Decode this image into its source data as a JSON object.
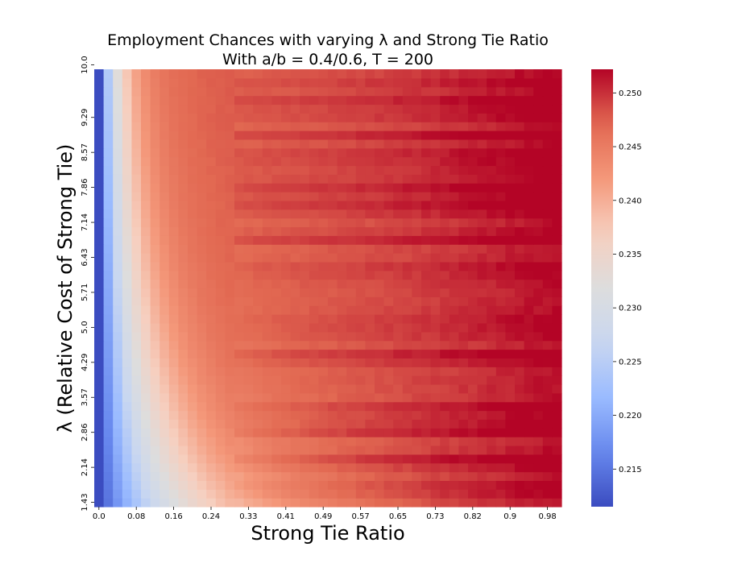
{
  "chart_data": {
    "type": "heatmap",
    "title_line1": "Employment Chances with varying λ and Strong Tie Ratio",
    "title_line2": "With a/b = 0.4/0.6, T = 200",
    "xlabel": "Strong Tie Ratio",
    "ylabel": "λ (Relative Cost of Strong Tie)",
    "x_tick_labels": [
      "0.0",
      "0.08",
      "0.16",
      "0.24",
      "0.33",
      "0.41",
      "0.49",
      "0.57",
      "0.65",
      "0.73",
      "0.82",
      "0.9",
      "0.98"
    ],
    "y_tick_labels_bottom_to_top": [
      "1.43",
      "2.14",
      "2.86",
      "3.57",
      "4.29",
      "5.0",
      "5.71",
      "6.43",
      "7.14",
      "7.86",
      "8.57",
      "9.29",
      "10.0"
    ],
    "x_range": [
      0.0,
      1.0
    ],
    "y_range": [
      1.43,
      10.0
    ],
    "n_columns": 50,
    "n_rows": 50,
    "value_range": [
      0.2115,
      0.2522
    ],
    "colormap": "coolwarm",
    "colormap_stops": [
      "#3b4cc0",
      "#6788ee",
      "#9abbff",
      "#c9d7f0",
      "#dddddd",
      "#f6cfbf",
      "#f4987a",
      "#e26952",
      "#b40426"
    ],
    "colorbar_ticks": [
      "0.215",
      "0.220",
      "0.225",
      "0.230",
      "0.235",
      "0.240",
      "0.245",
      "0.250"
    ],
    "grid": false,
    "legend": "colorbar-right"
  }
}
